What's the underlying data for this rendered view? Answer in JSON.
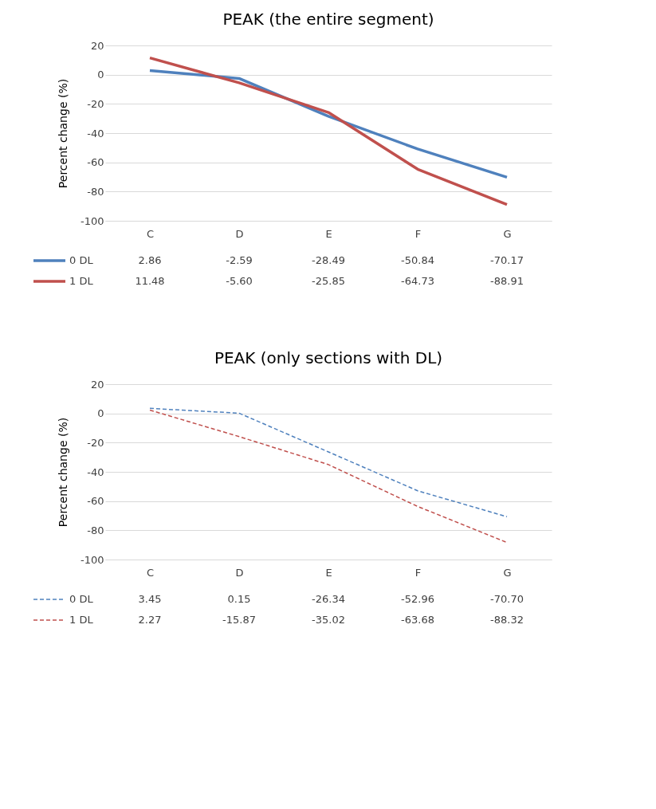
{
  "chart_data": [
    {
      "type": "line",
      "title": "PEAK (the entire segment)",
      "ylabel": "Percent change (%)",
      "categories": [
        "C",
        "D",
        "E",
        "F",
        "G"
      ],
      "ylim": [
        -100,
        20
      ],
      "yticks": [
        -100,
        -80,
        -60,
        -40,
        -20,
        0,
        20
      ],
      "grid": "y",
      "legend": "bottom",
      "line_style": "solid",
      "series": [
        {
          "name": "0 DL",
          "color": "#4f81bd",
          "values": [
            2.86,
            -2.59,
            -28.49,
            -50.84,
            -70.17
          ],
          "value_labels": [
            "2.86",
            "-2.59",
            "-28.49",
            "-50.84",
            "-70.17"
          ]
        },
        {
          "name": "1 DL",
          "color": "#c0504d",
          "values": [
            11.48,
            -5.6,
            -25.85,
            -64.73,
            -88.91
          ],
          "value_labels": [
            "11.48",
            "-5.60",
            "-25.85",
            "-64.73",
            "-88.91"
          ]
        }
      ]
    },
    {
      "type": "line",
      "title": "PEAK (only sections with DL)",
      "ylabel": "Percent change (%)",
      "categories": [
        "C",
        "D",
        "E",
        "F",
        "G"
      ],
      "ylim": [
        -100,
        20
      ],
      "yticks": [
        -100,
        -80,
        -60,
        -40,
        -20,
        0,
        20
      ],
      "grid": "y",
      "legend": "bottom",
      "line_style": "dashed",
      "series": [
        {
          "name": "0 DL",
          "color": "#4f81bd",
          "values": [
            3.45,
            0.15,
            -26.34,
            -52.96,
            -70.7
          ],
          "value_labels": [
            "3.45",
            "0.15",
            "-26.34",
            "-52.96",
            "-70.70"
          ]
        },
        {
          "name": "1 DL",
          "color": "#c0504d",
          "values": [
            2.27,
            -15.87,
            -35.02,
            -63.68,
            -88.32
          ],
          "value_labels": [
            "2.27",
            "-15.87",
            "-35.02",
            "-63.68",
            "-88.32"
          ]
        }
      ]
    }
  ]
}
